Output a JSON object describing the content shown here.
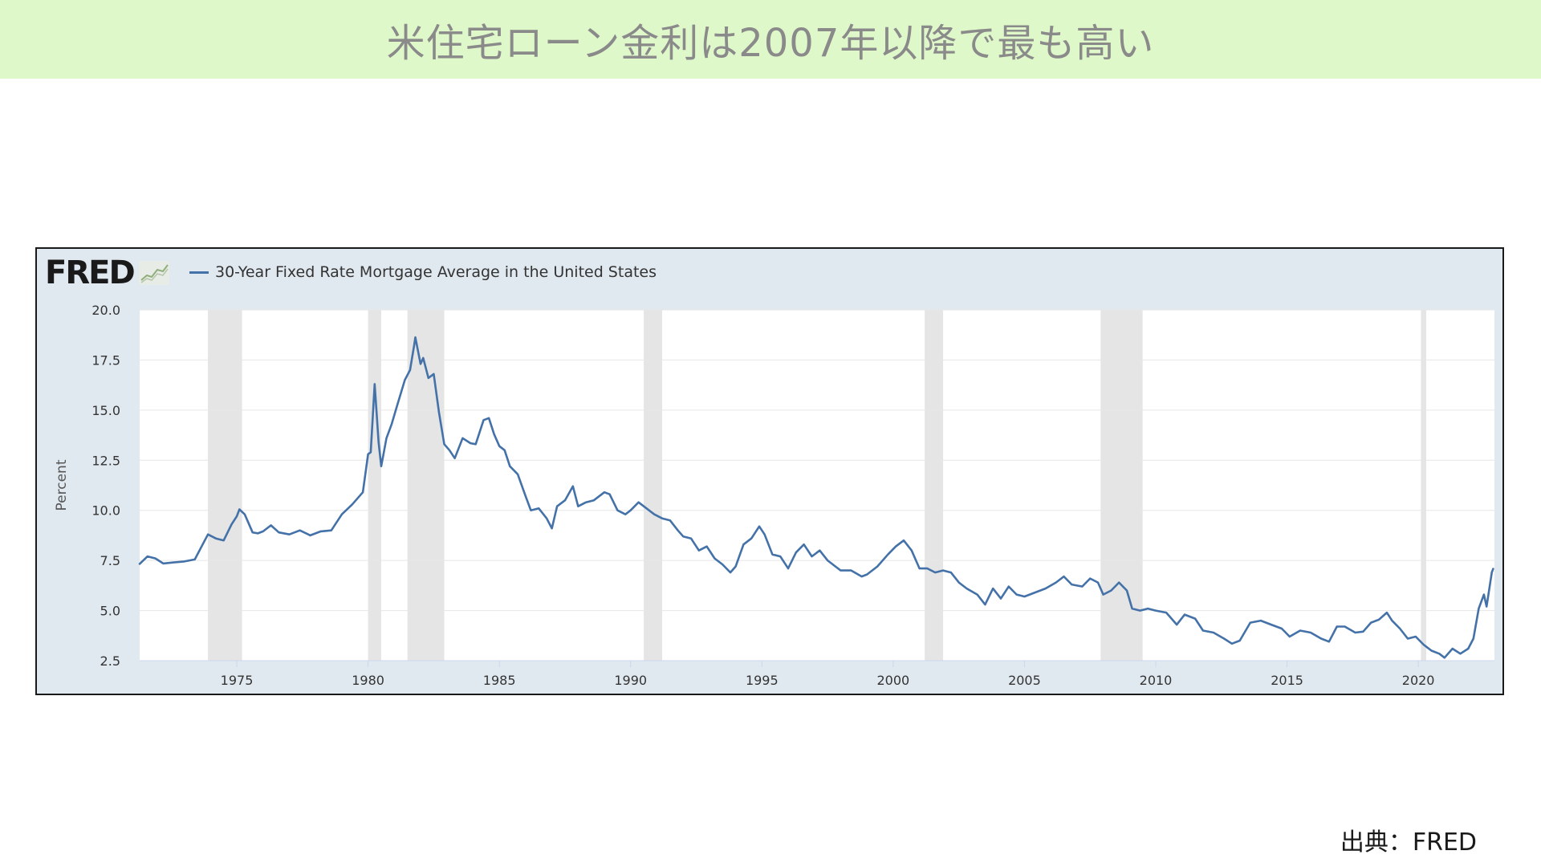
{
  "title": "米住宅ローン金利は2007年以降で最も高い",
  "source": "出典：FRED",
  "logo_text": "FRED",
  "chart_data": {
    "type": "line",
    "series": [
      {
        "name": "30-Year Fixed Rate Mortgage Average in the United States",
        "color": "#4472a8",
        "points": [
          [
            1971.3,
            7.33
          ],
          [
            1971.6,
            7.7
          ],
          [
            1971.9,
            7.6
          ],
          [
            1972.2,
            7.35
          ],
          [
            1972.6,
            7.4
          ],
          [
            1973.0,
            7.45
          ],
          [
            1973.4,
            7.55
          ],
          [
            1973.7,
            8.3
          ],
          [
            1973.9,
            8.8
          ],
          [
            1974.2,
            8.6
          ],
          [
            1974.5,
            8.5
          ],
          [
            1974.8,
            9.3
          ],
          [
            1975.0,
            9.7
          ],
          [
            1975.1,
            10.05
          ],
          [
            1975.3,
            9.8
          ],
          [
            1975.6,
            8.9
          ],
          [
            1975.8,
            8.85
          ],
          [
            1976.0,
            8.95
          ],
          [
            1976.3,
            9.25
          ],
          [
            1976.6,
            8.9
          ],
          [
            1977.0,
            8.8
          ],
          [
            1977.4,
            9.0
          ],
          [
            1977.8,
            8.75
          ],
          [
            1978.2,
            8.95
          ],
          [
            1978.6,
            9.0
          ],
          [
            1979.0,
            9.8
          ],
          [
            1979.4,
            10.3
          ],
          [
            1979.8,
            10.9
          ],
          [
            1980.0,
            12.8
          ],
          [
            1980.1,
            12.9
          ],
          [
            1980.25,
            16.3
          ],
          [
            1980.4,
            13.4
          ],
          [
            1980.5,
            12.2
          ],
          [
            1980.7,
            13.6
          ],
          [
            1980.9,
            14.3
          ],
          [
            1981.1,
            15.2
          ],
          [
            1981.4,
            16.5
          ],
          [
            1981.6,
            17.0
          ],
          [
            1981.75,
            18.2
          ],
          [
            1981.8,
            18.63
          ],
          [
            1982.0,
            17.3
          ],
          [
            1982.1,
            17.6
          ],
          [
            1982.3,
            16.6
          ],
          [
            1982.5,
            16.8
          ],
          [
            1982.7,
            14.9
          ],
          [
            1982.9,
            13.3
          ],
          [
            1983.1,
            13.0
          ],
          [
            1983.3,
            12.6
          ],
          [
            1983.6,
            13.6
          ],
          [
            1983.9,
            13.35
          ],
          [
            1984.1,
            13.3
          ],
          [
            1984.4,
            14.5
          ],
          [
            1984.6,
            14.6
          ],
          [
            1984.8,
            13.8
          ],
          [
            1985.0,
            13.2
          ],
          [
            1985.2,
            13.0
          ],
          [
            1985.4,
            12.2
          ],
          [
            1985.7,
            11.8
          ],
          [
            1986.0,
            10.7
          ],
          [
            1986.2,
            10.0
          ],
          [
            1986.5,
            10.1
          ],
          [
            1986.8,
            9.6
          ],
          [
            1987.0,
            9.1
          ],
          [
            1987.2,
            10.2
          ],
          [
            1987.5,
            10.5
          ],
          [
            1987.8,
            11.2
          ],
          [
            1988.0,
            10.2
          ],
          [
            1988.3,
            10.4
          ],
          [
            1988.6,
            10.5
          ],
          [
            1989.0,
            10.9
          ],
          [
            1989.2,
            10.8
          ],
          [
            1989.5,
            10.0
          ],
          [
            1989.8,
            9.8
          ],
          [
            1990.0,
            10.0
          ],
          [
            1990.3,
            10.4
          ],
          [
            1990.6,
            10.1
          ],
          [
            1990.9,
            9.8
          ],
          [
            1991.2,
            9.6
          ],
          [
            1991.5,
            9.5
          ],
          [
            1991.8,
            9.0
          ],
          [
            1992.0,
            8.7
          ],
          [
            1992.3,
            8.6
          ],
          [
            1992.6,
            8.0
          ],
          [
            1992.9,
            8.2
          ],
          [
            1993.2,
            7.6
          ],
          [
            1993.5,
            7.3
          ],
          [
            1993.8,
            6.9
          ],
          [
            1994.0,
            7.2
          ],
          [
            1994.3,
            8.3
          ],
          [
            1994.6,
            8.6
          ],
          [
            1994.9,
            9.2
          ],
          [
            1995.1,
            8.8
          ],
          [
            1995.4,
            7.8
          ],
          [
            1995.7,
            7.7
          ],
          [
            1996.0,
            7.1
          ],
          [
            1996.3,
            7.9
          ],
          [
            1996.6,
            8.3
          ],
          [
            1996.9,
            7.7
          ],
          [
            1997.2,
            8.0
          ],
          [
            1997.5,
            7.5
          ],
          [
            1997.8,
            7.2
          ],
          [
            1998.0,
            7.0
          ],
          [
            1998.4,
            7.0
          ],
          [
            1998.8,
            6.7
          ],
          [
            1999.0,
            6.8
          ],
          [
            1999.4,
            7.2
          ],
          [
            1999.8,
            7.8
          ],
          [
            2000.1,
            8.2
          ],
          [
            2000.4,
            8.5
          ],
          [
            2000.7,
            8.0
          ],
          [
            2001.0,
            7.1
          ],
          [
            2001.3,
            7.1
          ],
          [
            2001.6,
            6.9
          ],
          [
            2001.9,
            7.0
          ],
          [
            2002.2,
            6.9
          ],
          [
            2002.5,
            6.4
          ],
          [
            2002.8,
            6.1
          ],
          [
            2003.2,
            5.8
          ],
          [
            2003.5,
            5.3
          ],
          [
            2003.8,
            6.1
          ],
          [
            2004.1,
            5.6
          ],
          [
            2004.4,
            6.2
          ],
          [
            2004.7,
            5.8
          ],
          [
            2005.0,
            5.7
          ],
          [
            2005.4,
            5.9
          ],
          [
            2005.8,
            6.1
          ],
          [
            2006.2,
            6.4
          ],
          [
            2006.5,
            6.7
          ],
          [
            2006.8,
            6.3
          ],
          [
            2007.2,
            6.2
          ],
          [
            2007.5,
            6.6
          ],
          [
            2007.8,
            6.4
          ],
          [
            2008.0,
            5.8
          ],
          [
            2008.3,
            6.0
          ],
          [
            2008.6,
            6.4
          ],
          [
            2008.9,
            6.0
          ],
          [
            2009.1,
            5.1
          ],
          [
            2009.4,
            5.0
          ],
          [
            2009.7,
            5.1
          ],
          [
            2010.0,
            5.0
          ],
          [
            2010.4,
            4.9
          ],
          [
            2010.8,
            4.3
          ],
          [
            2011.1,
            4.8
          ],
          [
            2011.5,
            4.6
          ],
          [
            2011.8,
            4.0
          ],
          [
            2012.2,
            3.9
          ],
          [
            2012.6,
            3.6
          ],
          [
            2012.9,
            3.35
          ],
          [
            2013.2,
            3.5
          ],
          [
            2013.6,
            4.4
          ],
          [
            2014.0,
            4.5
          ],
          [
            2014.4,
            4.3
          ],
          [
            2014.8,
            4.1
          ],
          [
            2015.1,
            3.7
          ],
          [
            2015.5,
            4.0
          ],
          [
            2015.9,
            3.9
          ],
          [
            2016.3,
            3.6
          ],
          [
            2016.6,
            3.45
          ],
          [
            2016.9,
            4.2
          ],
          [
            2017.2,
            4.2
          ],
          [
            2017.6,
            3.9
          ],
          [
            2017.9,
            3.95
          ],
          [
            2018.2,
            4.4
          ],
          [
            2018.5,
            4.55
          ],
          [
            2018.8,
            4.9
          ],
          [
            2019.0,
            4.5
          ],
          [
            2019.3,
            4.1
          ],
          [
            2019.6,
            3.6
          ],
          [
            2019.9,
            3.7
          ],
          [
            2020.2,
            3.3
          ],
          [
            2020.5,
            3.0
          ],
          [
            2020.8,
            2.85
          ],
          [
            2021.0,
            2.65
          ],
          [
            2021.3,
            3.1
          ],
          [
            2021.6,
            2.85
          ],
          [
            2021.9,
            3.1
          ],
          [
            2022.1,
            3.6
          ],
          [
            2022.3,
            5.1
          ],
          [
            2022.5,
            5.8
          ],
          [
            2022.6,
            5.2
          ],
          [
            2022.8,
            6.9
          ],
          [
            2022.85,
            7.08
          ]
        ]
      }
    ],
    "title": "",
    "xlabel": "",
    "ylabel": "Percent",
    "xlim": [
      1971.3,
      2022.9
    ],
    "ylim": [
      2.5,
      20.0
    ],
    "x_ticks": [
      "1975",
      "1980",
      "1985",
      "1990",
      "1995",
      "2000",
      "2005",
      "2010",
      "2015",
      "2020"
    ],
    "y_ticks": [
      "2.5",
      "5.0",
      "7.5",
      "10.0",
      "12.5",
      "15.0",
      "17.5",
      "20.0"
    ],
    "recessions": [
      [
        1973.9,
        1975.2
      ],
      [
        1980.0,
        1980.5
      ],
      [
        1981.5,
        1982.9
      ],
      [
        1990.5,
        1991.2
      ],
      [
        2001.2,
        2001.9
      ],
      [
        2007.9,
        2009.5
      ],
      [
        2020.1,
        2020.3
      ]
    ],
    "grid": true,
    "legend_position": "top-left",
    "recession_color": "#e5e5e5",
    "plot_bg": "#ffffff",
    "frame_bg": "#e1e9f0"
  }
}
